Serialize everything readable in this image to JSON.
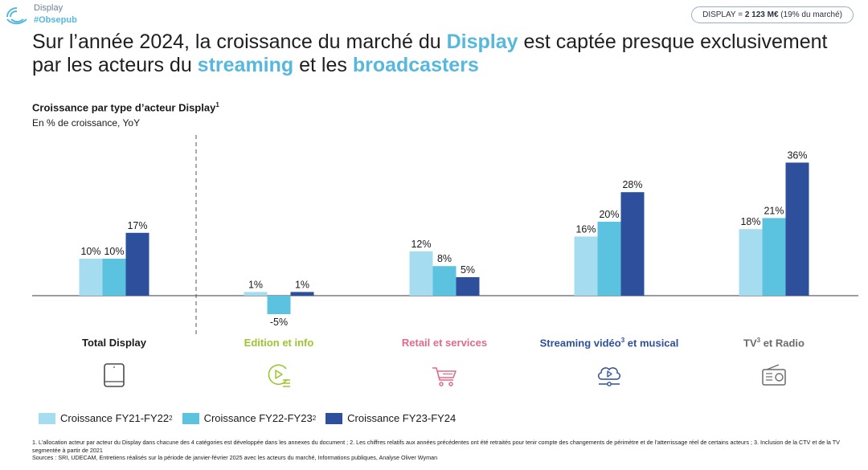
{
  "header": {
    "brand_line1": "Display",
    "brand_line2": "#Obsepub",
    "badge_prefix": "DISPLAY = ",
    "badge_value": "2 123 M€",
    "badge_suffix": " (19% du marché)"
  },
  "headline": {
    "part1": "Sur l’année 2024, la croissance du marché du ",
    "hl1": "Display",
    "part2": " est captée presque exclusivement par les acteurs du ",
    "hl2": "streaming",
    "part3": " et les ",
    "hl3": "broadcasters"
  },
  "chart_title": {
    "text": "Croissance par type d’acteur Display",
    "sup": "1",
    "subtitle": "En % de croissance, YoY"
  },
  "chart_data": {
    "type": "bar",
    "categories": [
      "Total Display",
      "Edition et info",
      "Retail et services",
      "Streaming vidéo³ et musical",
      "TV³ et Radio"
    ],
    "series": [
      {
        "name": "Croissance FY21-FY22²",
        "values": [
          10,
          1,
          12,
          16,
          18
        ]
      },
      {
        "name": "Croissance FY22-FY23²",
        "values": [
          10,
          -5,
          8,
          20,
          21
        ]
      },
      {
        "name": "Croissance FY23-FY24",
        "values": [
          17,
          1,
          5,
          28,
          36
        ]
      }
    ],
    "value_suffix": "%",
    "colors": [
      "#a6dcf0",
      "#5bc3e0",
      "#2e4f9c"
    ],
    "category_colors": [
      "#1a1a1a",
      "#9cc531",
      "#e06a8a",
      "#2e4f9c",
      "#6b6b6b"
    ]
  },
  "categories_display": [
    {
      "label": "Total Display",
      "sup": "",
      "rest": "",
      "icon": "tablet-icon"
    },
    {
      "label": "Edition et info",
      "sup": "",
      "rest": "",
      "icon": "play-list-icon"
    },
    {
      "label": "Retail et services",
      "sup": "",
      "rest": "",
      "icon": "shopping-cart-icon"
    },
    {
      "label": "Streaming vidéo",
      "sup": "3",
      "rest": " et musical",
      "icon": "cloud-play-icon"
    },
    {
      "label": "TV",
      "sup": "3",
      "rest": " et Radio",
      "icon": "radio-icon"
    }
  ],
  "legend": [
    {
      "label": "Croissance FY21-FY22",
      "sup": "2"
    },
    {
      "label": "Croissance FY22-FY23",
      "sup": "2"
    },
    {
      "label": "Croissance FY23-FY24",
      "sup": ""
    }
  ],
  "footnotes": {
    "line1": "1. L’allocation acteur par acteur du Display dans chacune des 4 catégories est développée dans les annexes du document ; 2. Les chiffres relatifs aux années précédentes ont été retraités pour tenir compte des changements de périmètre et de l’atterrissage réel de certains acteurs ; 3. Inclusion de la CTV et de la TV segmentée à partir de 2021",
    "line2": "Sources : SRI, UDECAM, Entretiens réalisés sur la période de janvier-février 2025 avec les acteurs du marché, Informations publiques, Analyse Oliver Wyman"
  }
}
